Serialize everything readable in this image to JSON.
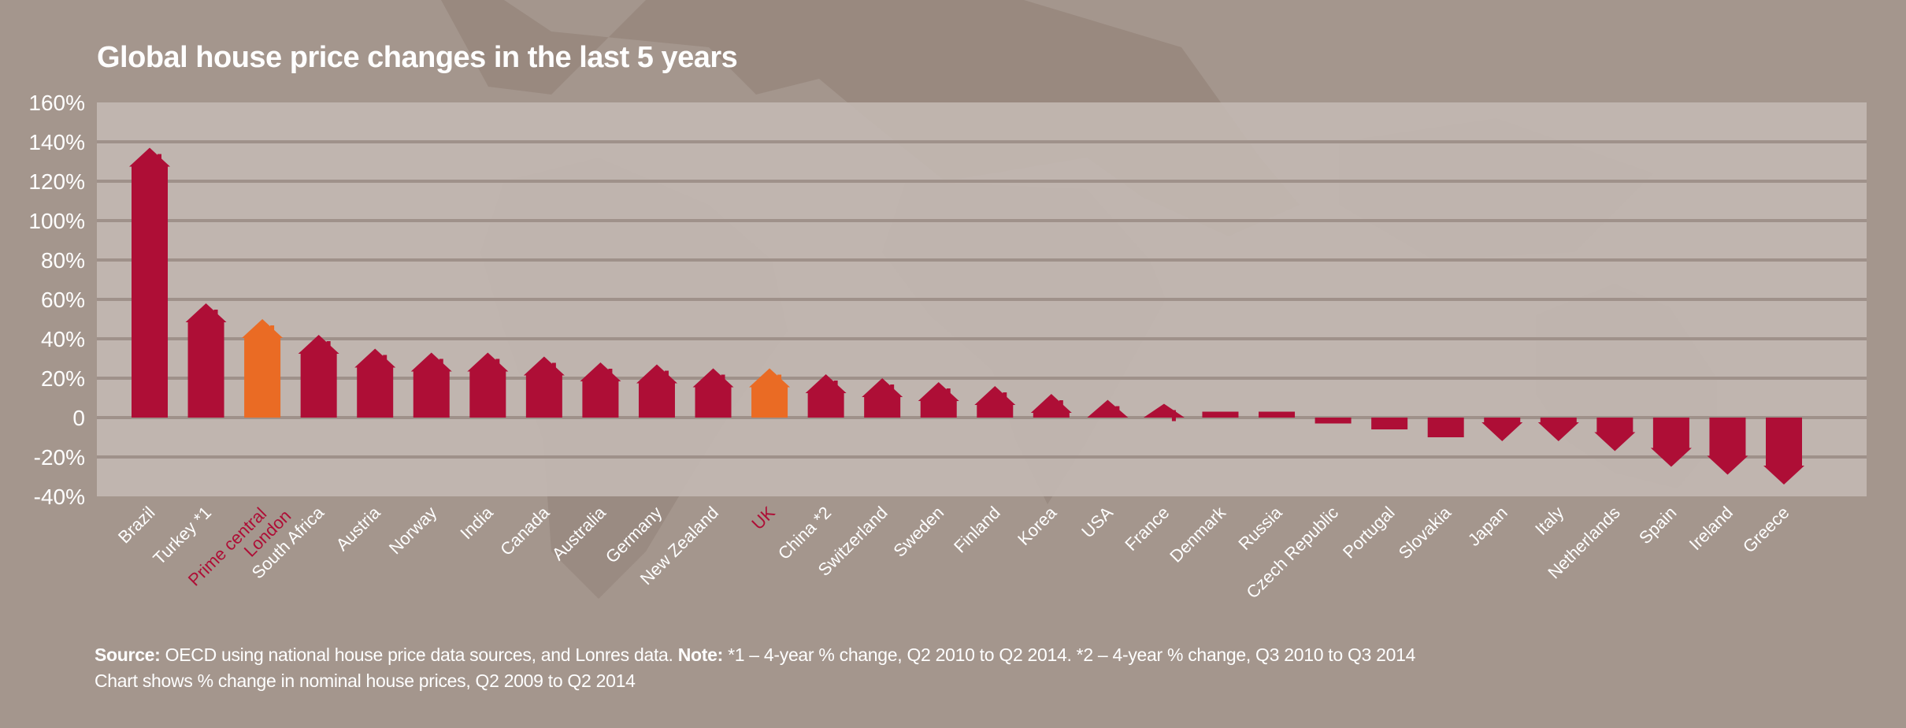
{
  "chart_data": {
    "type": "bar",
    "title": "Global house price changes in the last 5 years",
    "xlabel": "",
    "ylabel": "",
    "ylim": [
      -40,
      160
    ],
    "yticks": [
      "160%",
      "140%",
      "120%",
      "100%",
      "80%",
      "60%",
      "40%",
      "20%",
      "0",
      "-20%",
      "-40%"
    ],
    "ytick_values": [
      160,
      140,
      120,
      100,
      80,
      60,
      40,
      20,
      0,
      -20,
      -40
    ],
    "grid": true,
    "categories": [
      "Brazil",
      "Turkey *1",
      "Prime central London",
      "South Africa",
      "Austria",
      "Norway",
      "India",
      "Canada",
      "Australia",
      "Germany",
      "New Zealand",
      "UK",
      "China *2",
      "Switzerland",
      "Sweden",
      "Finland",
      "Korea",
      "USA",
      "France",
      "Denmark",
      "Russia",
      "Czech Republic",
      "Portugal",
      "Slovakia",
      "Japan",
      "Italy",
      "Netherlands",
      "Spain",
      "Ireland",
      "Greece"
    ],
    "values": [
      137,
      58,
      50,
      42,
      35,
      33,
      33,
      31,
      28,
      27,
      25,
      25,
      22,
      20,
      18,
      16,
      12,
      9,
      7,
      3,
      3,
      -3,
      -6,
      -10,
      -12,
      -12,
      -17,
      -25,
      -29,
      -34
    ],
    "highlighted": [
      "Prime central London",
      "UK"
    ],
    "colors": {
      "default": "#ae0e36",
      "highlight": "#ea6b24",
      "highlight_label": "#ae0e36",
      "label": "#ffffff"
    }
  },
  "footer": {
    "source_label": "Source:",
    "source_text": " OECD using national house price data sources, and Lonres data. ",
    "note_label": "Note:",
    "note_text": " *1 – 4-year % change, Q2 2010 to Q2 2014. *2 – 4-year % change, Q3 2010 to Q3 2014",
    "line2": "Chart shows % change in nominal house prices, Q2 2009 to Q2 2014"
  }
}
